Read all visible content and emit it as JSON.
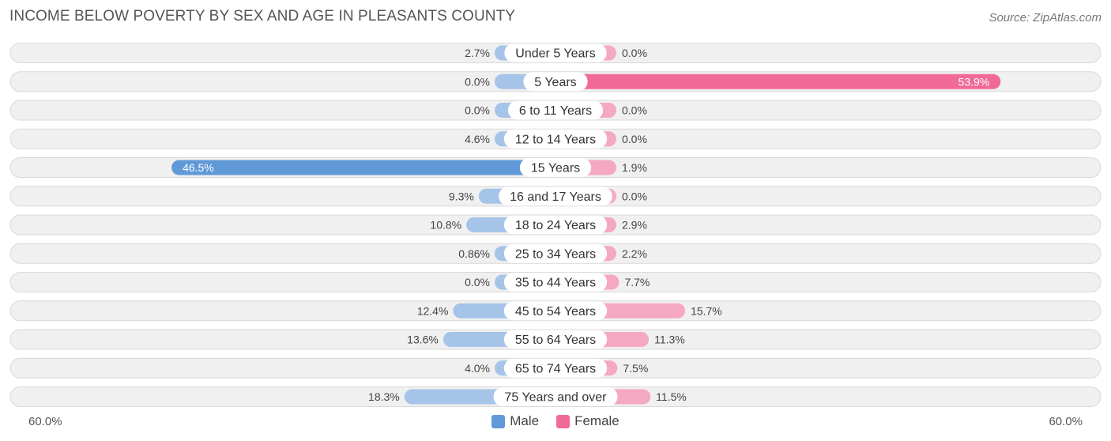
{
  "title": "INCOME BELOW POVERTY BY SEX AND AGE IN PLEASANTS COUNTY",
  "source": "Source: ZipAtlas.com",
  "axis": {
    "left_label": "60.0%",
    "right_label": "60.0%"
  },
  "legend": {
    "male": "Male",
    "female": "Female"
  },
  "colors": {
    "male_light": "#a5c4e8",
    "male_dark": "#6199d8",
    "female_light": "#f5a8c2",
    "female_dark": "#f06a96",
    "row_bg": "#f0f0f0",
    "row_border": "#d9d9d9"
  },
  "chart_data": {
    "type": "bar",
    "orientation": "horizontal-diverging",
    "title": "INCOME BELOW POVERTY BY SEX AND AGE IN PLEASANTS COUNTY",
    "max": 60.0,
    "categories": [
      "Under 5 Years",
      "5 Years",
      "6 to 11 Years",
      "12 to 14 Years",
      "15 Years",
      "16 and 17 Years",
      "18 to 24 Years",
      "25 to 34 Years",
      "35 to 44 Years",
      "45 to 54 Years",
      "55 to 64 Years",
      "65 to 74 Years",
      "75 Years and over"
    ],
    "series": [
      {
        "name": "Male",
        "values": [
          2.7,
          0.0,
          0.0,
          4.6,
          46.5,
          9.3,
          10.8,
          0.86,
          0.0,
          12.4,
          13.6,
          4.0,
          18.3
        ],
        "labels": [
          "2.7%",
          "0.0%",
          "0.0%",
          "4.6%",
          "46.5%",
          "9.3%",
          "10.8%",
          "0.86%",
          "0.0%",
          "12.4%",
          "13.6%",
          "4.0%",
          "18.3%"
        ]
      },
      {
        "name": "Female",
        "values": [
          0.0,
          53.9,
          0.0,
          0.0,
          1.9,
          0.0,
          2.9,
          2.2,
          7.7,
          15.7,
          11.3,
          7.5,
          11.5
        ],
        "labels": [
          "0.0%",
          "53.9%",
          "0.0%",
          "0.0%",
          "1.9%",
          "0.0%",
          "2.9%",
          "2.2%",
          "7.7%",
          "15.7%",
          "11.3%",
          "7.5%",
          "11.5%"
        ]
      }
    ]
  }
}
